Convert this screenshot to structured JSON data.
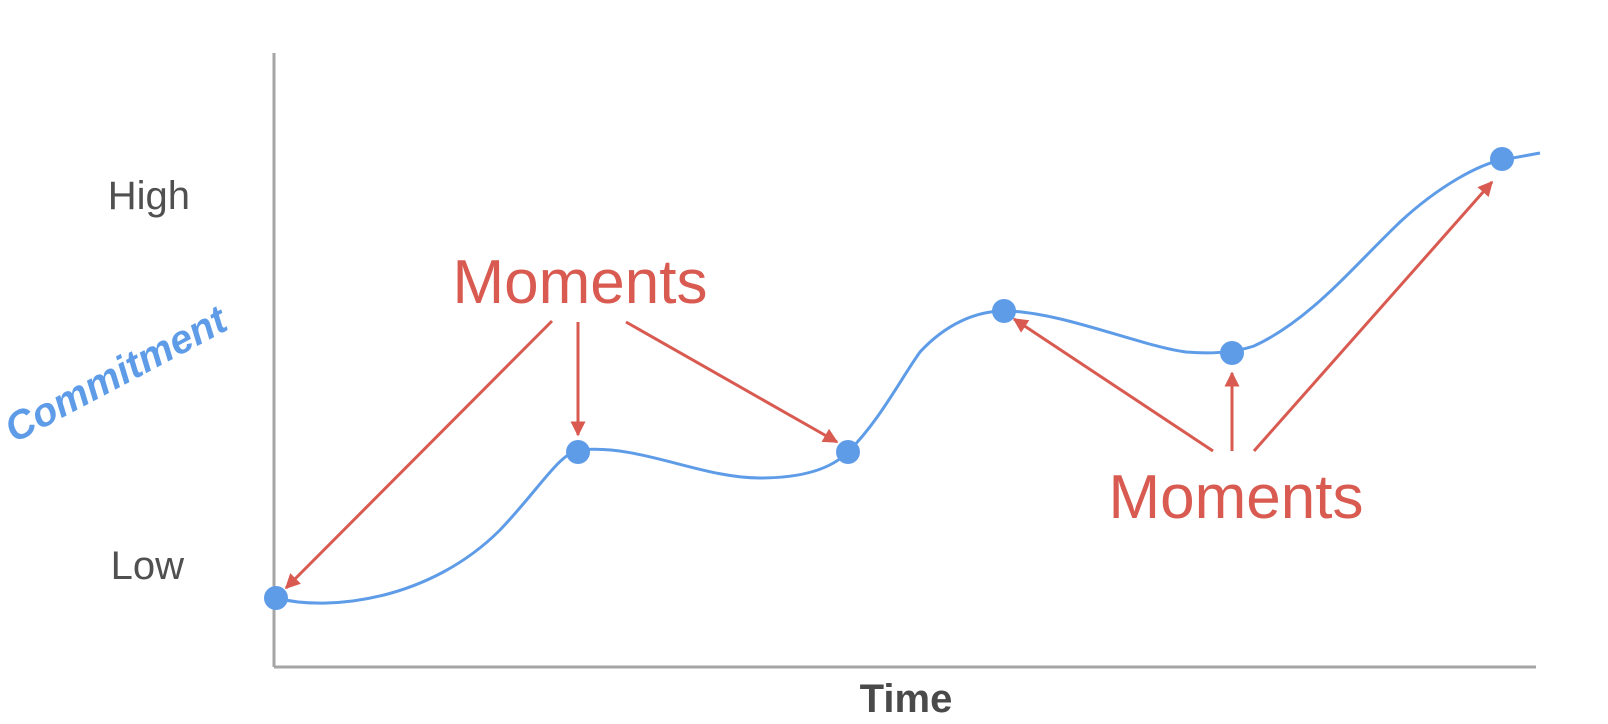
{
  "colors": {
    "curve": "#5e9ce8",
    "point": "#5e9ce8",
    "annotation": "#d85a50",
    "axis": "#a5a5a5",
    "tick_text": "#505050",
    "y_title": "#5e9ce8",
    "x_title": "#4a4a4a"
  },
  "axes": {
    "y_title": "Commitment",
    "x_title": "Time",
    "y_ticks": [
      "High",
      "Low"
    ]
  },
  "annotations": [
    {
      "label": "Moments",
      "targets": [
        1,
        2,
        3
      ]
    },
    {
      "label": "Moments",
      "targets": [
        4,
        5,
        6
      ]
    }
  ]
}
